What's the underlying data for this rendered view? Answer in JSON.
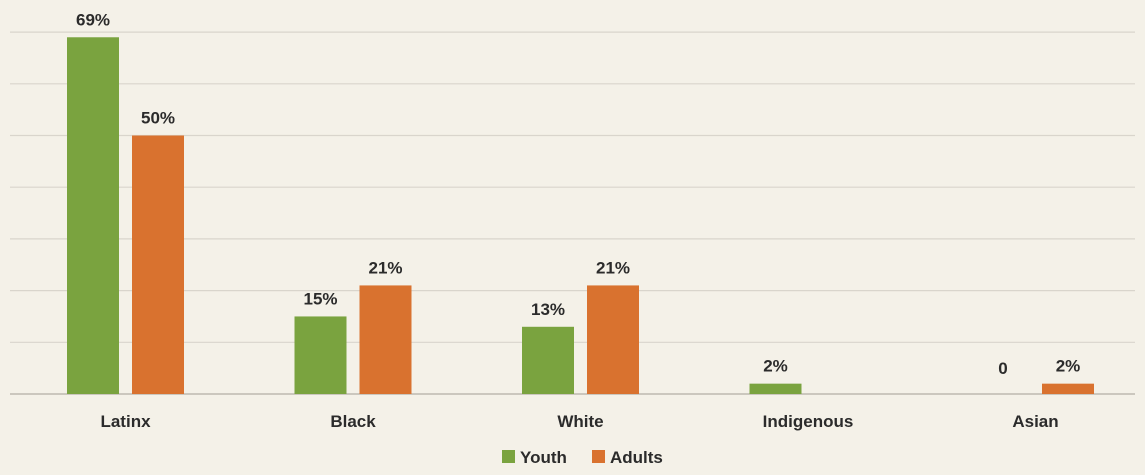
{
  "chart_data": {
    "type": "bar",
    "categories": [
      "Latinx",
      "Black",
      "White",
      "Indigenous",
      "Asian"
    ],
    "series": [
      {
        "name": "Youth",
        "color": "#7aa33f",
        "values": [
          69,
          15,
          13,
          2,
          0
        ],
        "labels": [
          "69%",
          "15%",
          "13%",
          "2%",
          "0"
        ]
      },
      {
        "name": "Adults",
        "color": "#d9722f",
        "values": [
          50,
          21,
          21,
          null,
          2
        ],
        "labels": [
          "50%",
          "21%",
          "21%",
          "",
          "2%"
        ]
      }
    ],
    "ylim": [
      0,
      70
    ],
    "grid": true,
    "legend_position": "bottom"
  },
  "colors": {
    "background": "#f4f1e8",
    "gridline": "#d9d5cc",
    "axis": "#bdb9b0",
    "text": "#2b2b2b"
  }
}
